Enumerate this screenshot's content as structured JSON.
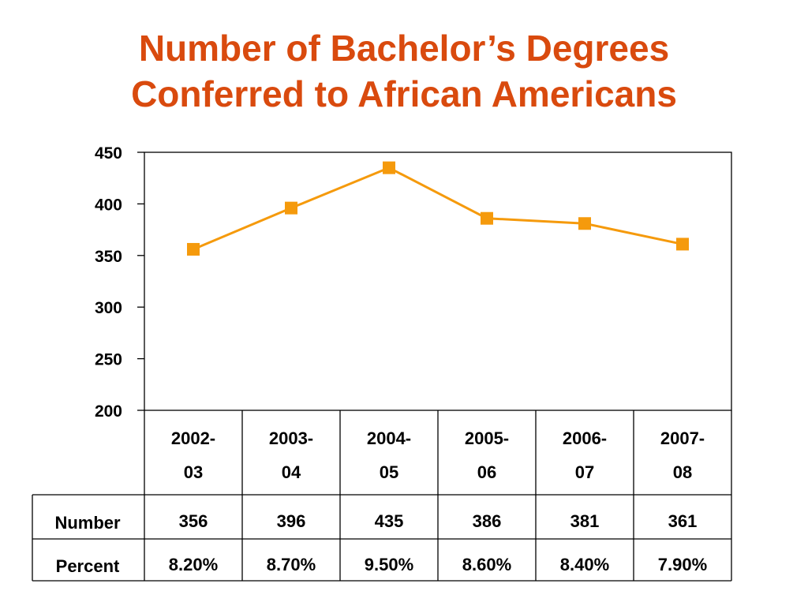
{
  "title": {
    "line1": "Number of Bachelor’s Degrees",
    "line2": "Conferred to African Americans"
  },
  "colors": {
    "title": "#d94a0e",
    "series": "#f59a0c",
    "axis": "#000000"
  },
  "chart_data": {
    "type": "line",
    "title": "Number of Bachelor’s Degrees Conferred to African Americans",
    "xlabel": "",
    "ylabel": "",
    "ylim": [
      200,
      450
    ],
    "yticks": [
      "450",
      "400",
      "350",
      "300",
      "250",
      "200"
    ],
    "grid": false,
    "legend": "none",
    "categories": [
      [
        "2002-",
        "03"
      ],
      [
        "2003-",
        "04"
      ],
      [
        "2004-",
        "05"
      ],
      [
        "2005-",
        "06"
      ],
      [
        "2006-",
        "07"
      ],
      [
        "2007-",
        "08"
      ]
    ],
    "series": [
      {
        "name": "Number",
        "values": [
          356,
          396,
          435,
          386,
          381,
          361
        ],
        "marker": "square"
      }
    ],
    "table": {
      "rows": [
        {
          "label": "Number",
          "cells": [
            "356",
            "396",
            "435",
            "386",
            "381",
            "361"
          ]
        },
        {
          "label": "Percent",
          "cells": [
            "8.20%",
            "8.70%",
            "9.50%",
            "8.60%",
            "8.40%",
            "7.90%"
          ]
        }
      ]
    }
  }
}
